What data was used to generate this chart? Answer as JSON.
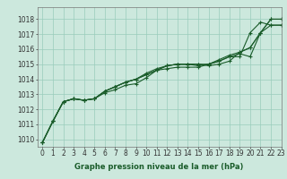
{
  "bg_color": "#cce8dd",
  "grid_color": "#99ccbb",
  "line_color": "#1a5c2a",
  "ylabel_ticks": [
    1010,
    1011,
    1012,
    1013,
    1014,
    1015,
    1016,
    1017,
    1018
  ],
  "xlim": [
    -0.5,
    23.0
  ],
  "ylim": [
    1009.5,
    1018.8
  ],
  "xlabel": "Graphe pression niveau de la mer (hPa)",
  "tick_fontsize": 5.5,
  "label_fontsize": 6.0,
  "series": [
    [
      1009.8,
      1011.2,
      1012.5,
      1012.7,
      1012.6,
      1012.7,
      1013.1,
      1013.3,
      1013.6,
      1013.7,
      1014.1,
      1014.6,
      1014.7,
      1014.8,
      1014.8,
      1014.8,
      1015.0,
      1015.2,
      1015.5,
      1015.5,
      1017.1,
      1017.8,
      1017.6,
      1017.6
    ],
    [
      1009.8,
      1011.2,
      1012.5,
      1012.7,
      1012.6,
      1012.7,
      1013.2,
      1013.5,
      1013.8,
      1014.0,
      1014.4,
      1014.7,
      1014.9,
      1015.0,
      1015.0,
      1015.0,
      1014.9,
      1015.0,
      1015.2,
      1015.8,
      1016.1,
      1017.1,
      1017.6,
      1017.6
    ],
    [
      1009.8,
      1011.2,
      1012.5,
      1012.7,
      1012.6,
      1012.7,
      1013.2,
      1013.5,
      1013.8,
      1014.0,
      1014.3,
      1014.6,
      1014.9,
      1015.0,
      1015.0,
      1014.9,
      1015.0,
      1015.2,
      1015.5,
      1015.7,
      1015.5,
      1017.1,
      1018.0,
      1018.0
    ],
    [
      1009.8,
      1011.2,
      1012.5,
      1012.7,
      1012.6,
      1012.7,
      1013.2,
      1013.5,
      1013.8,
      1014.0,
      1014.3,
      1014.6,
      1014.9,
      1015.0,
      1015.0,
      1015.0,
      1015.0,
      1015.3,
      1015.6,
      1015.8,
      1016.1,
      1017.1,
      1018.0,
      1018.0
    ]
  ]
}
